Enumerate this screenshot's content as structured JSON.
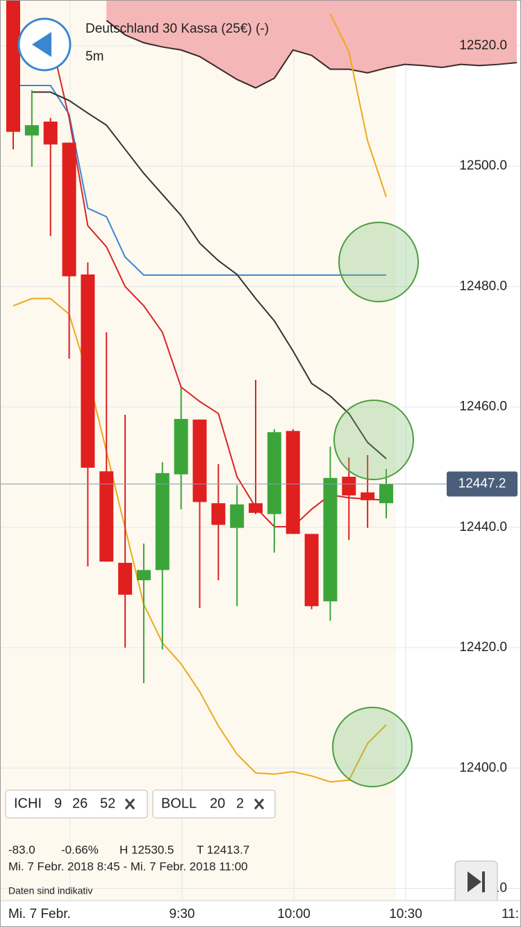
{
  "chart_data": {
    "type": "candlestick",
    "title": "Deutschland 30 Kassa (25€) (-)",
    "interval": "5m",
    "open": [
      12528.0,
      12505.1,
      12507.4,
      12503.9,
      12482.0,
      12449.3,
      12434.1,
      12431.2,
      12432.9,
      12448.8,
      12457.9,
      12444.0,
      12439.9,
      12444.0,
      12442.2,
      12456.0,
      12438.9,
      12427.7,
      12448.4,
      12445.8,
      12444.0
    ],
    "high": [
      12530.5,
      12512.6,
      12508.0,
      12503.9,
      12484.0,
      12472.4,
      12458.7,
      12437.3,
      12450.8,
      12463.2,
      12457.9,
      12450.5,
      12447.0,
      12464.5,
      12456.3,
      12456.3,
      12438.9,
      12453.4,
      12451.6,
      12452.0,
      12449.7
    ],
    "low": [
      12502.8,
      12499.9,
      12488.4,
      12468.0,
      12433.5,
      12434.3,
      12420.0,
      12414.1,
      12419.7,
      12443.0,
      12426.6,
      12431.2,
      12426.9,
      12442.2,
      12435.8,
      12438.9,
      12426.4,
      12424.5,
      12437.9,
      12439.9,
      12441.5
    ],
    "close": [
      12505.7,
      12506.8,
      12503.6,
      12481.7,
      12449.9,
      12434.3,
      12428.8,
      12432.9,
      12449.0,
      12458.0,
      12444.2,
      12440.4,
      12443.8,
      12442.4,
      12455.8,
      12438.9,
      12426.9,
      12448.2,
      12445.3,
      12444.5,
      12447.2
    ],
    "up_color": "#3ba53a",
    "down_color": "#e01f1f",
    "lines": [
      {
        "color": "#3a86d0",
        "values": [
          12513.4,
          12513.4,
          12513.4,
          12508.6,
          12493.0,
          12491.6,
          12484.9,
          12481.9,
          12481.9,
          12481.9,
          12481.9,
          12481.9,
          12481.9,
          12481.9,
          12481.9,
          12481.9,
          12481.9,
          12481.9,
          12481.9,
          12481.9,
          12481.9
        ]
      },
      {
        "color": "#d92424",
        "values": [
          null,
          null,
          12521.3,
          12508.0,
          12490.1,
          12486.6,
          12480.0,
          12476.8,
          12472.4,
          12463.3,
          12460.9,
          12458.9,
          12448.4,
          12443.3,
          12440.1,
          12440.1,
          12443.0,
          12445.4,
          12444.9,
          12444.7,
          12444.5
        ]
      },
      {
        "color": "#333333",
        "values": [
          null,
          12512.3,
          12512.3,
          12510.9,
          12508.8,
          12506.8,
          12502.8,
          12498.8,
          12495.3,
          12491.8,
          12487.2,
          12484.3,
          12482.0,
          12478.0,
          12474.3,
          12469.3,
          12463.9,
          12461.8,
          12458.9,
          12454.1,
          12451.4
        ]
      },
      {
        "color": "#f0a81c",
        "values": [
          12476.8,
          12478.0,
          12478.0,
          12475.4,
          12465.3,
          12452.6,
          12439.9,
          12427.2,
          12420.8,
          12417.3,
          12412.7,
          12407.0,
          12402.3,
          12399.2,
          12399.0,
          12399.4,
          12398.7,
          12397.7,
          12398.0,
          12404.1,
          12407.2
        ]
      },
      {
        "color": "#f0a81c",
        "values": [
          null,
          null,
          null,
          null,
          null,
          null,
          null,
          null,
          null,
          null,
          null,
          null,
          null,
          null,
          null,
          null,
          null,
          12525.3,
          12519.0,
          12504.2,
          12494.9
        ]
      }
    ],
    "cloud": {
      "color": "#f4b6b6",
      "line_color": "#3a2a2a",
      "values": [
        null,
        null,
        null,
        null,
        null,
        12524.2,
        12521.8,
        12520.5,
        12519.8,
        12519.3,
        12518.2,
        12516.3,
        12514.4,
        12513.0,
        12514.6,
        12519.3,
        12518.4,
        12516.1,
        12516.1,
        12515.5,
        12516.3,
        12516.9,
        12516.7,
        12516.4,
        12516.9,
        12516.7,
        12516.9,
        12517.2
      ]
    },
    "last_price": 12447.2,
    "ylim": [
      12378.1,
      12527.6
    ],
    "yticks": [
      {
        "value": 12380,
        "label": "12380.0"
      },
      {
        "value": 12400,
        "label": "12400.0"
      },
      {
        "value": 12420,
        "label": "12420.0"
      },
      {
        "value": 12440,
        "label": "12440.0"
      },
      {
        "value": 12460,
        "label": "12460.0"
      },
      {
        "value": 12480,
        "label": "12480.0"
      },
      {
        "value": 12500,
        "label": "12500.0"
      },
      {
        "value": 12520,
        "label": "12520.0"
      }
    ],
    "xtick_labels": [
      "Mi. 7 Febr.",
      "9:30",
      "10:00",
      "10:30",
      "11:"
    ],
    "grid": true,
    "indicators": [
      {
        "name": "ICHI",
        "params": [
          9,
          26,
          52
        ]
      },
      {
        "name": "BOLL",
        "params": [
          20,
          2
        ]
      }
    ],
    "stats": {
      "change": "-83.0",
      "change_pct": "-0.66%",
      "high": "H 12530.5",
      "low": "T 12413.7",
      "range": "Mi. 7 Febr. 2018 8:45 - Mi. 7 Febr. 2018 11:00",
      "note": "Daten sind indikativ"
    }
  }
}
